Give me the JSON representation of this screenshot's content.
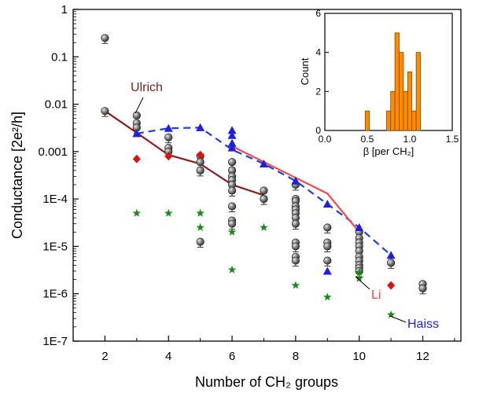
{
  "chart_data": [
    {
      "type": "scatter",
      "xlabel": "Number of CH₂ groups",
      "ylabel": "Conductance [2e²/h]",
      "y_scale": "log",
      "xlim": [
        1,
        13.2
      ],
      "ylim": [
        1e-07,
        1
      ],
      "x_ticks": [
        2,
        4,
        6,
        8,
        10,
        12
      ],
      "x_tick_labels": [
        "2",
        "4",
        "6",
        "8",
        "10",
        "12"
      ],
      "y_ticks": [
        1e-07,
        1e-06,
        1e-05,
        0.0001,
        0.001,
        0.01,
        0.1,
        1
      ],
      "y_tick_labels": [
        "1E-7",
        "1E-6",
        "1E-5",
        "1E-4",
        "0.001",
        "0.01",
        "0.1",
        "1"
      ],
      "series": [
        {
          "marker": "sphere",
          "color": "#5a5a5a",
          "points": [
            {
              "x": 2,
              "y": 0.25
            },
            {
              "x": 2,
              "y": 0.0072
            },
            {
              "x": 3,
              "y": 0.0058
            },
            {
              "x": 3,
              "y": 0.004
            },
            {
              "x": 3,
              "y": 0.0032
            },
            {
              "x": 4,
              "y": 0.002
            },
            {
              "x": 4,
              "y": 0.0012
            },
            {
              "x": 4,
              "y": 0.001
            },
            {
              "x": 5,
              "y": 0.0008
            },
            {
              "x": 5,
              "y": 0.0006
            },
            {
              "x": 5,
              "y": 0.0004
            },
            {
              "x": 5,
              "y": 1.25e-05
            },
            {
              "x": 6,
              "y": 0.0006
            },
            {
              "x": 6,
              "y": 0.0004
            },
            {
              "x": 6,
              "y": 0.0003
            },
            {
              "x": 6,
              "y": 0.00025
            },
            {
              "x": 6,
              "y": 0.0002
            },
            {
              "x": 6,
              "y": 0.00015
            },
            {
              "x": 6,
              "y": 7e-05
            },
            {
              "x": 6,
              "y": 3.5e-05
            },
            {
              "x": 6,
              "y": 3e-05
            },
            {
              "x": 7,
              "y": 0.00015
            },
            {
              "x": 7,
              "y": 0.0001
            },
            {
              "x": 8,
              "y": 0.0002
            },
            {
              "x": 8,
              "y": 0.0001
            },
            {
              "x": 8,
              "y": 9e-05
            },
            {
              "x": 8,
              "y": 7e-05
            },
            {
              "x": 8,
              "y": 6e-05
            },
            {
              "x": 8,
              "y": 5e-05
            },
            {
              "x": 8,
              "y": 4e-05
            },
            {
              "x": 8,
              "y": 3e-05
            },
            {
              "x": 8,
              "y": 1.2e-05
            },
            {
              "x": 8,
              "y": 1e-05
            },
            {
              "x": 8,
              "y": 6e-06
            },
            {
              "x": 8,
              "y": 5e-06
            },
            {
              "x": 9,
              "y": 2.5e-05
            },
            {
              "x": 9,
              "y": 1.2e-05
            },
            {
              "x": 9,
              "y": 1e-05
            },
            {
              "x": 9,
              "y": 5e-06
            },
            {
              "x": 10,
              "y": 2e-05
            },
            {
              "x": 10,
              "y": 1.5e-05
            },
            {
              "x": 10,
              "y": 1.2e-05
            },
            {
              "x": 10,
              "y": 1e-05
            },
            {
              "x": 10,
              "y": 8e-06
            },
            {
              "x": 10,
              "y": 6e-06
            },
            {
              "x": 10,
              "y": 5e-06
            },
            {
              "x": 10,
              "y": 4e-06
            },
            {
              "x": 10,
              "y": 3.5e-06
            },
            {
              "x": 10,
              "y": 3e-06
            },
            {
              "x": 11,
              "y": 4.5e-06
            },
            {
              "x": 12,
              "y": 1.6e-06
            },
            {
              "x": 12,
              "y": 1.3e-06
            }
          ]
        },
        {
          "marker": "triangle",
          "color": "#1f1fdd",
          "points": [
            {
              "x": 3,
              "y": 0.0024
            },
            {
              "x": 4,
              "y": 0.0031
            },
            {
              "x": 5,
              "y": 0.0032
            },
            {
              "x": 6,
              "y": 0.0028
            },
            {
              "x": 6,
              "y": 0.0022
            },
            {
              "x": 6,
              "y": 0.0015
            },
            {
              "x": 6,
              "y": 0.0012
            },
            {
              "x": 7,
              "y": 0.00055
            },
            {
              "x": 8,
              "y": 0.00024
            },
            {
              "x": 9,
              "y": 7.8e-05
            },
            {
              "x": 9,
              "y": 3e-06
            },
            {
              "x": 10,
              "y": 2.5e-05
            },
            {
              "x": 11,
              "y": 6.5e-06
            }
          ]
        },
        {
          "marker": "diamond",
          "color": "#e01010",
          "points": [
            {
              "x": 3,
              "y": 0.0007
            },
            {
              "x": 4,
              "y": 0.0008
            },
            {
              "x": 5,
              "y": 0.00085
            },
            {
              "x": 11,
              "y": 1.5e-06
            }
          ]
        },
        {
          "marker": "star",
          "color": "#1a8a1a",
          "points": [
            {
              "x": 3,
              "y": 5e-05
            },
            {
              "x": 4,
              "y": 5e-05
            },
            {
              "x": 5,
              "y": 5e-05
            },
            {
              "x": 5,
              "y": 2.5e-05
            },
            {
              "x": 6,
              "y": 2e-05
            },
            {
              "x": 6,
              "y": 3.2e-06
            },
            {
              "x": 7,
              "y": 2.5e-05
            },
            {
              "x": 8,
              "y": 1.5e-06
            },
            {
              "x": 9,
              "y": 8.5e-07
            },
            {
              "x": 10,
              "y": 2.8e-06
            },
            {
              "x": 10,
              "y": 2.1e-06
            },
            {
              "x": 11,
              "y": 3.6e-07
            }
          ]
        }
      ],
      "lines": [
        {
          "name": "Ulrich",
          "color": "#8b1a1a",
          "style": "solid",
          "x": [
            2,
            3,
            4,
            5,
            6,
            7
          ],
          "y": [
            0.0072,
            0.0025,
            0.00085,
            0.00055,
            0.0002,
            0.00012
          ]
        },
        {
          "name": "Haiss",
          "color": "#1f3fdd",
          "style": "dashed",
          "x": [
            3,
            4,
            5,
            6,
            7,
            8,
            9,
            10,
            11
          ],
          "y": [
            0.0024,
            0.0031,
            0.0032,
            0.0011,
            0.00055,
            0.00024,
            7.8e-05,
            2.5e-05,
            6.5e-06
          ]
        },
        {
          "name": "Li",
          "color": "#f04a4a",
          "style": "solid",
          "x": [
            6,
            8,
            9,
            10
          ],
          "y": [
            0.0013,
            0.00028,
            0.00013,
            2e-05
          ]
        }
      ],
      "annotations": [
        {
          "text": "Ulrich",
          "color": "#8b1a1a"
        },
        {
          "text": "Li",
          "color": "#f04a4a"
        },
        {
          "text": "Haiss",
          "color": "#1f1fdd"
        }
      ]
    },
    {
      "type": "bar",
      "role": "inset",
      "xlabel": "β [per CH₂]",
      "ylabel": "Count",
      "xlim": [
        0,
        1.5
      ],
      "ylim": [
        0,
        6
      ],
      "x_ticks": [
        0,
        0.5,
        1.0,
        1.5
      ],
      "x_tick_labels": [
        "0.0",
        "0.5",
        "1.0",
        "1.5"
      ],
      "y_ticks": [
        0,
        2,
        4,
        6
      ],
      "y_tick_labels": [
        "0",
        "2",
        "4",
        "6"
      ],
      "bar_color": "#ff8c00",
      "bin_width": 0.05,
      "bins": [
        {
          "x": 0.5,
          "count": 1
        },
        {
          "x": 0.75,
          "count": 1
        },
        {
          "x": 0.8,
          "count": 2
        },
        {
          "x": 0.85,
          "count": 5
        },
        {
          "x": 0.9,
          "count": 4
        },
        {
          "x": 0.95,
          "count": 2
        },
        {
          "x": 1.0,
          "count": 3
        },
        {
          "x": 1.05,
          "count": 1
        },
        {
          "x": 1.1,
          "count": 4
        }
      ]
    }
  ]
}
